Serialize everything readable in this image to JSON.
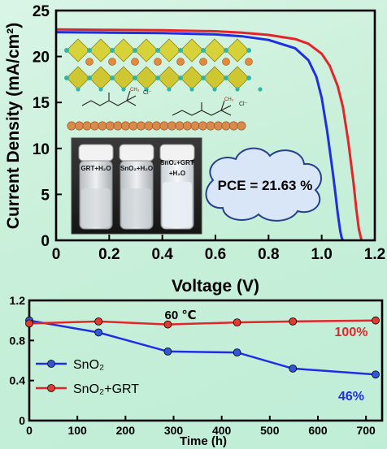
{
  "colors": {
    "blue": "#1f2ee0",
    "red": "#e3242b",
    "blue_marker": "#2f57d8",
    "red_marker": "#e13a2f",
    "cloud_fill": "#d9e6f7",
    "cloud_stroke": "#27408b",
    "pce_text": "#000000",
    "annotation_red": "#e3242b",
    "annotation_blue": "#1f2ee0"
  },
  "chart_data": [
    {
      "type": "line",
      "xlabel": "Voltage (V)",
      "ylabel": "Current Density (mA/cm²)",
      "xlim": [
        0,
        1.2
      ],
      "ylim": [
        0,
        25
      ],
      "x_ticks": [
        "0",
        "0.2",
        "0.4",
        "0.6",
        "0.8",
        "1.0",
        "1.2"
      ],
      "y_ticks": [
        "0",
        "5",
        "10",
        "15",
        "20",
        "25"
      ],
      "series": [
        {
          "color": "#1f2ee0",
          "x": [
            0,
            0.2,
            0.4,
            0.6,
            0.7,
            0.8,
            0.9,
            0.95,
            0.98,
            1.0,
            1.02,
            1.04,
            1.05,
            1.06,
            1.07,
            1.075,
            1.08
          ],
          "y": [
            22.65,
            22.6,
            22.55,
            22.4,
            22.2,
            21.8,
            20.9,
            19.6,
            17.8,
            15.5,
            12.0,
            7.8,
            5.5,
            3.0,
            1.0,
            0.3,
            0
          ]
        },
        {
          "color": "#e3242b",
          "x": [
            0,
            0.2,
            0.4,
            0.6,
            0.7,
            0.8,
            0.9,
            0.95,
            1.0,
            1.03,
            1.06,
            1.08,
            1.1,
            1.12,
            1.13,
            1.14,
            1.15
          ],
          "y": [
            22.95,
            22.9,
            22.85,
            22.75,
            22.6,
            22.35,
            21.9,
            21.4,
            20.3,
            19.0,
            16.8,
            14.5,
            10.8,
            6.2,
            3.5,
            1.2,
            0
          ]
        }
      ],
      "annotations": {
        "pce": "PCE = 21.63 %",
        "vial_labels": [
          "GRT+H₂O",
          "SnO₂+H₂O",
          "SnO₂+GRT",
          "+H₂O"
        ],
        "chloride_label": "Cl⁻",
        "methyl_label": "CH₃"
      }
    },
    {
      "type": "line",
      "xlabel": "Time (h)",
      "ylim": [
        0,
        1.2
      ],
      "xlim": [
        0,
        720
      ],
      "x_ticks": [
        "0",
        "100",
        "200",
        "300",
        "400",
        "500",
        "600",
        "700"
      ],
      "y_ticks": [
        "0",
        "0.4",
        "0.8",
        "1.2"
      ],
      "temperature": "60 ℃",
      "legend_position": "lower-left",
      "series": [
        {
          "name": "SnO₂",
          "color": "#1f2ee0",
          "x": [
            0,
            144,
            288,
            432,
            548,
            720
          ],
          "y": [
            1.0,
            0.88,
            0.69,
            0.68,
            0.52,
            0.46
          ],
          "end_label": "46%"
        },
        {
          "name": "SnO₂+GRT",
          "color": "#e3242b",
          "x": [
            0,
            144,
            288,
            432,
            548,
            720
          ],
          "y": [
            0.97,
            0.99,
            0.96,
            0.98,
            0.99,
            1.0
          ],
          "end_label": "100%"
        }
      ]
    }
  ]
}
